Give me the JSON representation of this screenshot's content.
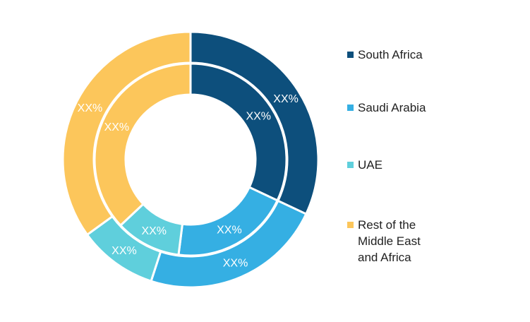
{
  "chart_data": {
    "type": "pie",
    "variant": "nested-donut",
    "title": "",
    "categories": [
      "South Africa",
      "Saudi Arabia",
      "UAE",
      "Rest of the\nMiddle East\nand Africa"
    ],
    "colors": [
      "#0d4f7c",
      "#35afe3",
      "#5fcfdc",
      "#fcc65b"
    ],
    "series": [
      {
        "ring": "outer",
        "values": [
          32,
          23,
          10,
          35
        ],
        "labels": [
          "XX%",
          "XX%",
          "XX%",
          "XX%"
        ]
      },
      {
        "ring": "inner",
        "values": [
          32,
          20,
          11,
          37
        ],
        "labels": [
          "XX%",
          "XX%",
          "XX%",
          "XX%"
        ]
      }
    ],
    "legend_position": "right"
  }
}
